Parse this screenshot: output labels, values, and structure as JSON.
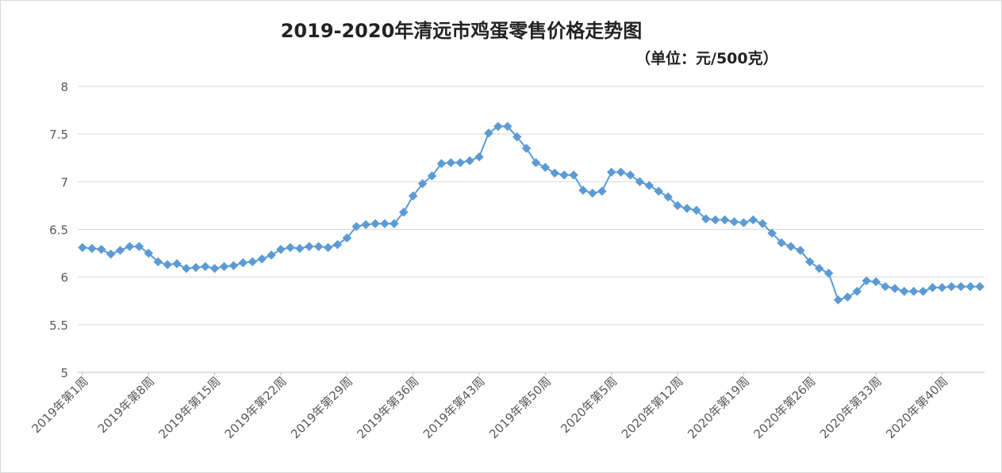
{
  "chart_data": {
    "type": "line",
    "title": "2019-2020年清远市鸡蛋零售价格走势图",
    "subtitle": "（单位：元/500克）",
    "ylim": [
      5,
      8
    ],
    "yticks": [
      "5",
      "5.5",
      "6",
      "6.5",
      "7",
      "7.5",
      "8"
    ],
    "grid": true,
    "line_color": "#5b9bd5",
    "marker": "diamond",
    "x_tick_labels": [
      "2019年第1周",
      "2019年第8周",
      "2019年第15周",
      "2019年第22周",
      "2019年第29周",
      "2019年第36周",
      "2019年第43周",
      "2019年第50周",
      "2020年第5周",
      "2020年第12周",
      "2020年第19周",
      "2020年第26周",
      "2020年第33周",
      "2020年第40周"
    ],
    "x_tick_every": 7,
    "series": [
      {
        "values": [
          6.31,
          6.3,
          6.29,
          6.24,
          6.28,
          6.32,
          6.32,
          6.25,
          6.16,
          6.13,
          6.14,
          6.09,
          6.1,
          6.11,
          6.09,
          6.11,
          6.12,
          6.15,
          6.16,
          6.19,
          6.23,
          6.29,
          6.31,
          6.3,
          6.32,
          6.32,
          6.31,
          6.34,
          6.41,
          6.53,
          6.55,
          6.56,
          6.56,
          6.56,
          6.68,
          6.85,
          6.98,
          7.06,
          7.19,
          7.2,
          7.2,
          7.22,
          7.26,
          7.51,
          7.58,
          7.58,
          7.47,
          7.35,
          7.2,
          7.15,
          7.09,
          7.07,
          7.07,
          6.91,
          6.88,
          6.9,
          7.1,
          7.1,
          7.07,
          7.0,
          6.96,
          6.9,
          6.84,
          6.75,
          6.72,
          6.7,
          6.61,
          6.6,
          6.6,
          6.58,
          6.57,
          6.6,
          6.56,
          6.46,
          6.36,
          6.32,
          6.28,
          6.16,
          6.09,
          6.04,
          5.76,
          5.79,
          5.85,
          5.96,
          5.95,
          5.9,
          5.88,
          5.85,
          5.85,
          5.85,
          5.89,
          5.89,
          5.9,
          5.9,
          5.9,
          5.9
        ]
      }
    ]
  }
}
